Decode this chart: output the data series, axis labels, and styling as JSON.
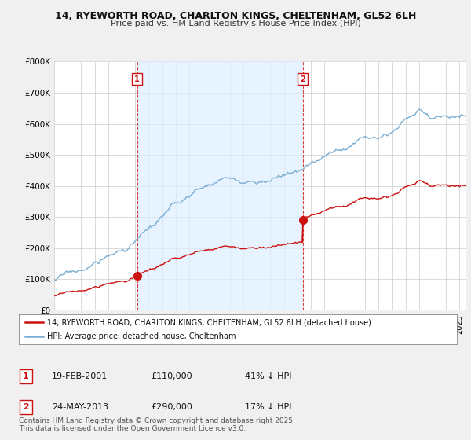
{
  "title1": "14, RYEWORTH ROAD, CHARLTON KINGS, CHELTENHAM, GL52 6LH",
  "title2": "Price paid vs. HM Land Registry's House Price Index (HPI)",
  "ylim": [
    0,
    800000
  ],
  "yticks": [
    0,
    100000,
    200000,
    300000,
    400000,
    500000,
    600000,
    700000,
    800000
  ],
  "ytick_labels": [
    "£0",
    "£100K",
    "£200K",
    "£300K",
    "£400K",
    "£500K",
    "£600K",
    "£700K",
    "£800K"
  ],
  "hpi_color": "#7aadd4",
  "sale_color": "#cc1111",
  "vline_color": "#cc1111",
  "shade_color": "#ddeeff",
  "bg_color": "#f0f0f0",
  "plot_bg": "#ffffff",
  "sale1_x": 2001.13,
  "sale1_y": 110000,
  "sale1_label": "1",
  "sale2_x": 2013.39,
  "sale2_y": 290000,
  "sale2_label": "2",
  "legend_line1": "14, RYEWORTH ROAD, CHARLTON KINGS, CHELTENHAM, GL52 6LH (detached house)",
  "legend_line2": "HPI: Average price, detached house, Cheltenham",
  "annot1_date": "19-FEB-2001",
  "annot1_price": "£110,000",
  "annot1_hpi": "41% ↓ HPI",
  "annot2_date": "24-MAY-2013",
  "annot2_price": "£290,000",
  "annot2_hpi": "17% ↓ HPI",
  "footer": "Contains HM Land Registry data © Crown copyright and database right 2025.\nThis data is licensed under the Open Government Licence v3.0.",
  "xmin": 1995,
  "xmax": 2025.5
}
